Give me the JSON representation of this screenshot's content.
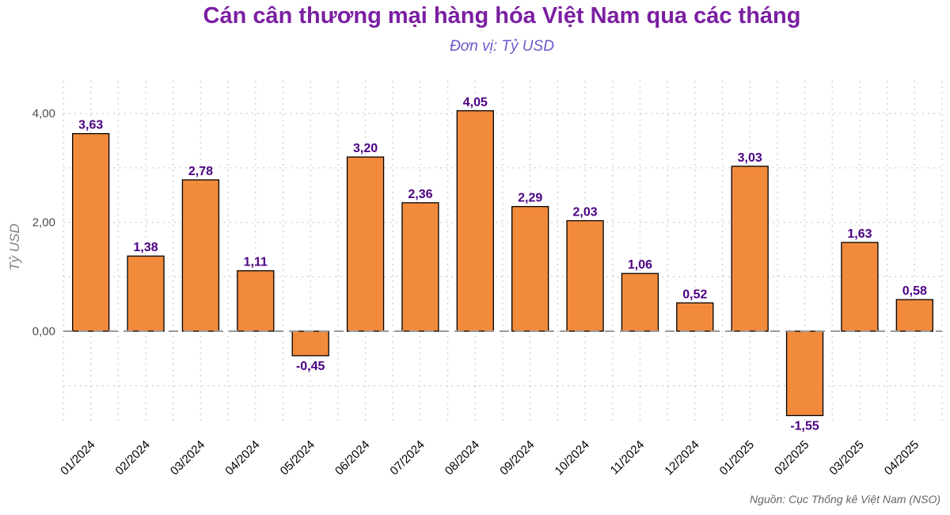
{
  "chart_data": {
    "type": "bar",
    "title": "Cán cân thương mại hàng hóa Việt Nam qua các tháng",
    "subtitle": "Đơn vị: Tỷ USD",
    "xlabel": "",
    "ylabel": "Tỷ USD",
    "source": "Nguồn: Cục Thống kê Việt Nam (NSO)",
    "categories": [
      "01/2024",
      "02/2024",
      "03/2024",
      "04/2024",
      "05/2024",
      "06/2024",
      "07/2024",
      "08/2024",
      "09/2024",
      "10/2024",
      "11/2024",
      "12/2024",
      "01/2025",
      "02/2025",
      "03/2025",
      "04/2025"
    ],
    "values": [
      3.63,
      1.38,
      2.78,
      1.11,
      -0.45,
      3.2,
      2.36,
      4.05,
      2.29,
      2.03,
      1.06,
      0.52,
      3.03,
      -1.55,
      1.63,
      0.58
    ],
    "data_labels": [
      "3,63",
      "1,38",
      "2,78",
      "1,11",
      "-0,45",
      "3,20",
      "2,36",
      "4,05",
      "2,29",
      "2,03",
      "1,06",
      "0,52",
      "3,03",
      "-1,55",
      "1,63",
      "0,58"
    ],
    "y_ticks": [
      0,
      2,
      4
    ],
    "y_tick_labels": [
      "0,00",
      "2,00",
      "4,00"
    ],
    "ylim": [
      -1.7,
      4.6
    ],
    "bar_color": "#f28a3c",
    "bar_edge_color": "#000000",
    "label_color": "#4b0082",
    "grid": true,
    "zero_line": "dashed"
  }
}
